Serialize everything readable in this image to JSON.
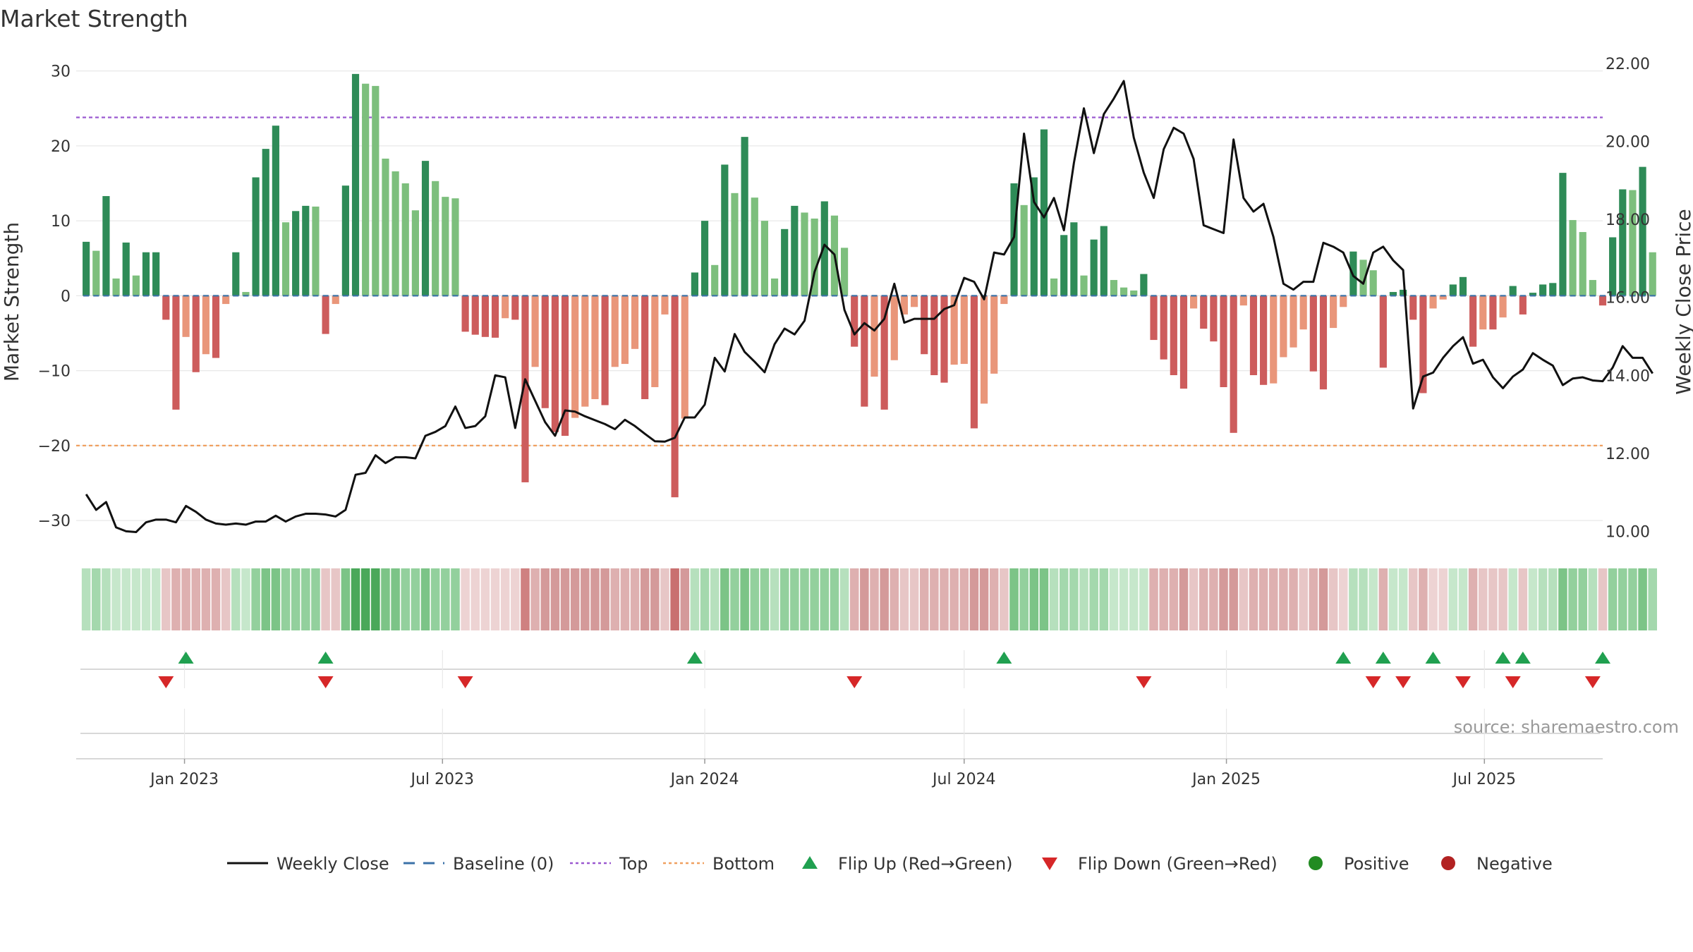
{
  "chart_data": {
    "type": "bar+line",
    "title": "Market Strength",
    "source": "source: sharemaestro.com",
    "ylabel_left": "Market Strength",
    "ylabel_right": "Weekly Close Price",
    "left_axis": {
      "range": [
        -33,
        31
      ],
      "ticks": [
        30,
        20,
        10,
        0,
        -10,
        -20,
        -30
      ],
      "tick_labels": [
        "30",
        "20",
        "10",
        "0",
        "−10",
        "−20",
        "−30"
      ]
    },
    "right_axis": {
      "range": [
        9.7,
        22.0
      ],
      "ticks": [
        22,
        20,
        18,
        16,
        14,
        12,
        10
      ],
      "tick_labels": [
        "22.00",
        "20.00",
        "18.00",
        "16.00",
        "14.00",
        "12.00",
        "10.00"
      ]
    },
    "x_range": [
      "2022-10-17",
      "2025-09-22"
    ],
    "x_ticks": [
      {
        "date": "2023-01-01",
        "label": "Jan 2023"
      },
      {
        "date": "2023-07-01",
        "label": "Jul 2023"
      },
      {
        "date": "2024-01-01",
        "label": "Jan 2024"
      },
      {
        "date": "2024-07-01",
        "label": "Jul 2024"
      },
      {
        "date": "2025-01-01",
        "label": "Jan 2025"
      },
      {
        "date": "2025-07-01",
        "label": "Jul 2025"
      }
    ],
    "start_week": "2022-10-24",
    "top_level": 23.8,
    "bottom_level": -20,
    "baseline": 0,
    "strength": [
      7.2,
      6,
      13.3,
      2.3,
      7.1,
      2.7,
      5.8,
      5.8,
      -3.2,
      -15.2,
      -5.5,
      -10.2,
      -7.8,
      -8.3,
      -1.1,
      5.8,
      0.5,
      15.8,
      19.6,
      22.7,
      9.8,
      11.3,
      12,
      11.9,
      -5.1,
      -1.1,
      14.7,
      29.6,
      28.3,
      28,
      18.3,
      16.6,
      15,
      11.4,
      18,
      15.3,
      13.2,
      13,
      -4.8,
      -5.2,
      -5.5,
      -5.6,
      -3,
      -3.2,
      -24.9,
      -9.5,
      -15,
      -18.2,
      -18.7,
      -16.3,
      -14.8,
      -13.8,
      -14.6,
      -9.5,
      -9.1,
      -7.1,
      -13.8,
      -12.2,
      -2.5,
      -26.9,
      -16.4,
      3.1,
      10,
      4.1,
      17.5,
      13.7,
      21.2,
      13.1,
      10,
      2.3,
      8.9,
      12,
      11.1,
      10.3,
      12.6,
      10.7,
      6.4,
      -6.8,
      -14.8,
      -10.8,
      -15.2,
      -8.6,
      -2.5,
      -1.5,
      -7.8,
      -10.6,
      -11.6,
      -9.2,
      -9.1,
      -17.7,
      -14.4,
      -10.4,
      -1.1,
      15,
      12.1,
      15.8,
      22.2,
      2.3,
      8.1,
      9.8,
      2.7,
      7.5,
      9.3,
      2.1,
      1.1,
      0.7,
      2.9,
      -5.9,
      -8.5,
      -10.6,
      -12.4,
      -1.7,
      -4.4,
      -6.1,
      -12.2,
      -18.3,
      -1.3,
      -10.6,
      -11.9,
      -11.7,
      -8.2,
      -6.9,
      -4.5,
      -10.1,
      -12.5,
      -4.3,
      -1.5,
      5.9,
      4.8,
      3.4,
      -9.6,
      0.5,
      0.8,
      -3.2,
      -13,
      -1.7,
      -0.5,
      1.5,
      2.5,
      -6.8,
      -4.5,
      -4.5,
      -2.9,
      1.3,
      -2.5,
      0.4,
      1.5,
      1.7,
      16.4,
      10.1,
      8.5,
      2.1,
      -1.3,
      7.8,
      14.2,
      14.1,
      17.2,
      5.8
    ],
    "close": [
      10.95,
      10.55,
      10.75,
      10.1,
      10,
      9.98,
      10.23,
      10.3,
      10.3,
      10.23,
      10.65,
      10.5,
      10.3,
      10.2,
      10.17,
      10.2,
      10.17,
      10.25,
      10.25,
      10.4,
      10.25,
      10.38,
      10.45,
      10.45,
      10.43,
      10.38,
      10.55,
      11.45,
      11.5,
      11.95,
      11.75,
      11.9,
      11.9,
      11.87,
      12.45,
      12.55,
      12.7,
      13.2,
      12.65,
      12.7,
      12.95,
      14,
      13.95,
      12.65,
      13.9,
      13.35,
      12.8,
      12.45,
      13.1,
      13.07,
      12.95,
      12.85,
      12.75,
      12.62,
      12.86,
      12.7,
      12.5,
      12.31,
      12.3,
      12.4,
      12.92,
      12.92,
      13.25,
      14.45,
      14.1,
      15.06,
      14.6,
      14.35,
      14.08,
      14.8,
      15.2,
      15.05,
      15.4,
      16.65,
      17.35,
      17.1,
      15.68,
      15.05,
      15.34,
      15.15,
      15.45,
      16.35,
      15.35,
      15.45,
      15.45,
      15.45,
      15.7,
      15.8,
      16.5,
      16.4,
      15.95,
      17.15,
      17.1,
      17.55,
      20.2,
      18.45,
      18.05,
      18.55,
      17.72,
      19.45,
      20.85,
      19.7,
      20.7,
      21.1,
      21.55,
      20.1,
      19.2,
      18.55,
      19.8,
      20.35,
      20.2,
      19.55,
      17.85,
      17.75,
      17.65,
      20.05,
      18.55,
      18.2,
      18.4,
      17.55,
      16.35,
      16.2,
      16.4,
      16.4,
      17.4,
      17.3,
      17.15,
      16.55,
      16.35,
      17.15,
      17.3,
      16.95,
      16.7,
      13.15,
      13.97,
      14.07,
      14.45,
      14.75,
      14.98,
      14.3,
      14.4,
      13.95,
      13.67,
      13.97,
      14.15,
      14.57,
      14.4,
      14.25,
      13.75,
      13.92,
      13.95,
      13.87,
      13.85,
      14.2,
      14.75,
      14.45,
      14.45,
      14.05
    ],
    "strength_bands": [
      "#b6e0bd",
      "#a4d8ad",
      "#b6e0bd",
      "#c6e7cb",
      "#c6e7cb",
      "#c6e7cb",
      "#c6e7cb",
      "#c6e7cb",
      "#e7c6c6",
      "#deb0b0",
      "#deb0b0",
      "#deb0b0",
      "#deb0b0",
      "#deb0b0",
      "#e7c6c6",
      "#b6e0bd",
      "#c6e7cb",
      "#93d09d",
      "#7cc487",
      "#7cc487",
      "#93d09d",
      "#93d09d",
      "#93d09d",
      "#93d09d",
      "#e7c6c6",
      "#e7c6c6",
      "#7cc487",
      "#4aa85a",
      "#4aa85a",
      "#4aa85a",
      "#7cc487",
      "#7cc487",
      "#93d09d",
      "#93d09d",
      "#7cc487",
      "#93d09d",
      "#93d09d",
      "#93d09d",
      "#edd3d3",
      "#edd3d3",
      "#edd3d3",
      "#edd3d3",
      "#edd3d3",
      "#edd3d3",
      "#cf8181",
      "#deb0b0",
      "#d49a9a",
      "#d49a9a",
      "#d49a9a",
      "#d49a9a",
      "#d49a9a",
      "#d49a9a",
      "#d49a9a",
      "#deb0b0",
      "#deb0b0",
      "#deb0b0",
      "#d49a9a",
      "#d49a9a",
      "#e7c6c6",
      "#c97070",
      "#d49a9a",
      "#b6e0bd",
      "#a4d8ad",
      "#b6e0bd",
      "#7cc487",
      "#93d09d",
      "#7cc487",
      "#93d09d",
      "#93d09d",
      "#b6e0bd",
      "#93d09d",
      "#93d09d",
      "#93d09d",
      "#93d09d",
      "#93d09d",
      "#93d09d",
      "#b6e0bd",
      "#deb0b0",
      "#d49a9a",
      "#deb0b0",
      "#d49a9a",
      "#deb0b0",
      "#e7c6c6",
      "#e7c6c6",
      "#deb0b0",
      "#deb0b0",
      "#deb0b0",
      "#deb0b0",
      "#deb0b0",
      "#d49a9a",
      "#d49a9a",
      "#deb0b0",
      "#e7c6c6",
      "#7cc487",
      "#93d09d",
      "#7cc487",
      "#7cc487",
      "#b6e0bd",
      "#a4d8ad",
      "#a4d8ad",
      "#b6e0bd",
      "#a4d8ad",
      "#a4d8ad",
      "#c6e7cb",
      "#c6e7cb",
      "#c6e7cb",
      "#c6e7cb",
      "#deb0b0",
      "#deb0b0",
      "#deb0b0",
      "#d49a9a",
      "#e7c6c6",
      "#deb0b0",
      "#deb0b0",
      "#d49a9a",
      "#d49a9a",
      "#e7c6c6",
      "#deb0b0",
      "#deb0b0",
      "#deb0b0",
      "#deb0b0",
      "#deb0b0",
      "#e7c6c6",
      "#deb0b0",
      "#d49a9a",
      "#e7c6c6",
      "#edd3d3",
      "#b6e0bd",
      "#b6e0bd",
      "#c6e7cb",
      "#deb0b0",
      "#c6e7cb",
      "#c6e7cb",
      "#e7c6c6",
      "#deb0b0",
      "#edd3d3",
      "#edd3d3",
      "#c6e7cb",
      "#c6e7cb",
      "#deb0b0",
      "#e7c6c6",
      "#e7c6c6",
      "#e7c6c6",
      "#c6e7cb",
      "#e7c6c6",
      "#c6e7cb",
      "#b6e0bd",
      "#b6e0bd",
      "#7cc487",
      "#93d09d",
      "#93d09d",
      "#b6e0bd",
      "#e7c6c6",
      "#93d09d",
      "#93d09d",
      "#93d09d",
      "#7cc487",
      "#a4d8ad"
    ],
    "flip_up_weeks": [
      10,
      24,
      61,
      92,
      126,
      130,
      135,
      142,
      144,
      152
    ],
    "flip_down_weeks": [
      8,
      24,
      38,
      77,
      106,
      129,
      132,
      138,
      143,
      151
    ],
    "legend": [
      {
        "label": "Weekly Close",
        "kind": "line",
        "color": "#111111"
      },
      {
        "label": "Baseline (0)",
        "kind": "dash",
        "color": "#3b72a8"
      },
      {
        "label": "Top",
        "kind": "dot",
        "color": "#9b59d0"
      },
      {
        "label": "Bottom",
        "kind": "dot",
        "color": "#f0a060"
      },
      {
        "label": "Flip Up (Red→Green)",
        "kind": "tri-up",
        "color": "#20a050"
      },
      {
        "label": "Flip Down (Green→Red)",
        "kind": "tri-down",
        "color": "#d62728"
      },
      {
        "label": "Positive",
        "kind": "circle",
        "color": "#228b22"
      },
      {
        "label": "Negative",
        "kind": "circle",
        "color": "#b22222"
      }
    ],
    "colors": {
      "pos_strong": "#2e8b57",
      "pos_light": "#7dbf7d",
      "neg_strong": "#cd5c5c",
      "neg_light": "#e9967a",
      "close_line": "#111111",
      "baseline": "#3b72a8",
      "top": "#9b59d0",
      "bottom": "#f0a060",
      "grid": "#e8e8e8",
      "axis": "#cccccc"
    }
  }
}
